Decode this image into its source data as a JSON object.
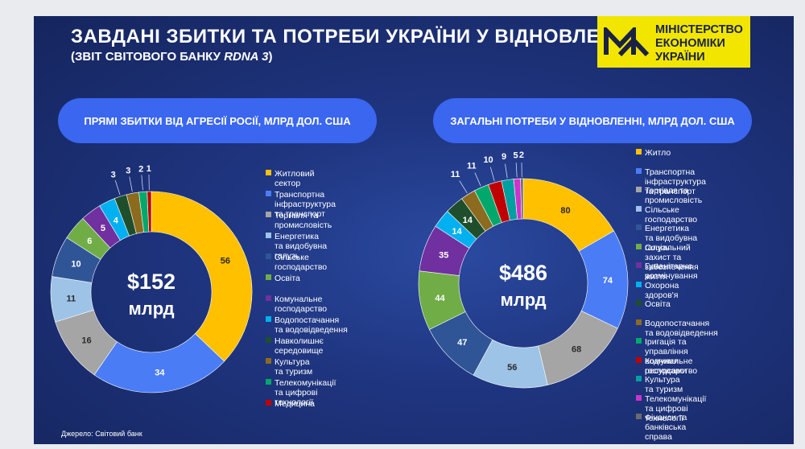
{
  "header": {
    "title": "ЗАВДАНІ ЗБИТКИ ТА ПОТРЕБИ УКРАЇНИ У ВІДНОВЛЕННІ",
    "subtitle_prefix": "(ЗВІТ СВІТОВОГО БАНКУ ",
    "subtitle_italic": "RDNA 3",
    "subtitle_suffix": ")",
    "logo_lines": [
      "МІНІСТЕРСТВО",
      "ЕКОНОМІКИ",
      "УКРАЇНИ"
    ],
    "logo_icon": "ministry-logo-mark-icon",
    "logo_color": "#f2e600"
  },
  "source": "Джерело: Світовий банк",
  "chart_data": [
    {
      "type": "pie",
      "donut": true,
      "title": "ПРЯМІ ЗБИТКИ ВІД АГРЕСІЇ РОСІЇ, МЛРД ДОЛ. США",
      "center_value": "$152",
      "center_unit": "млрд",
      "categories": [
        "Житловий сектор",
        "Транспортна інфраструктура та транспорт",
        "Торгівля та промисловість",
        "Енергетика та видобувна галузь",
        "Сільське господарство",
        "Освіта",
        "Комунальне господарство",
        "Водопостачання та водовідведення",
        "Навколишнє середовище",
        "Культура та туризм",
        "Телекомунікації та цифрові технології",
        "Медицина"
      ],
      "values": [
        56,
        34,
        16,
        11,
        10,
        6,
        5,
        4,
        3,
        3,
        2,
        1
      ],
      "colors": [
        "#ffc000",
        "#4a7cf5",
        "#a5a5a5",
        "#9dc3e6",
        "#2f5597",
        "#70ad47",
        "#7030a0",
        "#00b0f0",
        "#1f4e2c",
        "#8c6b1f",
        "#00a86b",
        "#c00000"
      ]
    },
    {
      "type": "pie",
      "donut": true,
      "title": "ЗАГАЛЬНІ ПОТРЕБИ У ВІДНОВЛЕННІ, МЛРД ДОЛ. США",
      "center_value": "$486",
      "center_unit": "млрд",
      "categories": [
        "Житло",
        "Транспортна інфраструктура та транспорт",
        "Торгівля та промисловість",
        "Сільське господарство",
        "Енергетика та видобувна галузь",
        "Соціальний захист та забезпечення життя",
        "Гуманітарне розмінування",
        "Охорона здоров'я",
        "Освіта",
        "Водопостачання та водовідведення",
        "Іригація та управління водними ресурсами",
        "Комунальне господарство",
        "Культура та туризм",
        "Телекомунікації та цифрові технології",
        "Фінанси та банківська справа"
      ],
      "values": [
        80,
        74,
        68,
        56,
        47,
        44,
        35,
        14,
        14,
        11,
        11,
        10,
        9,
        5,
        2
      ],
      "colors": [
        "#ffc000",
        "#4a7cf5",
        "#a5a5a5",
        "#9dc3e6",
        "#2f5597",
        "#70ad47",
        "#7030a0",
        "#00b0f0",
        "#1f4e2c",
        "#8c6b1f",
        "#00a86b",
        "#c00000",
        "#00a0a0",
        "#cc33cc",
        "#6b6b6b"
      ]
    }
  ]
}
